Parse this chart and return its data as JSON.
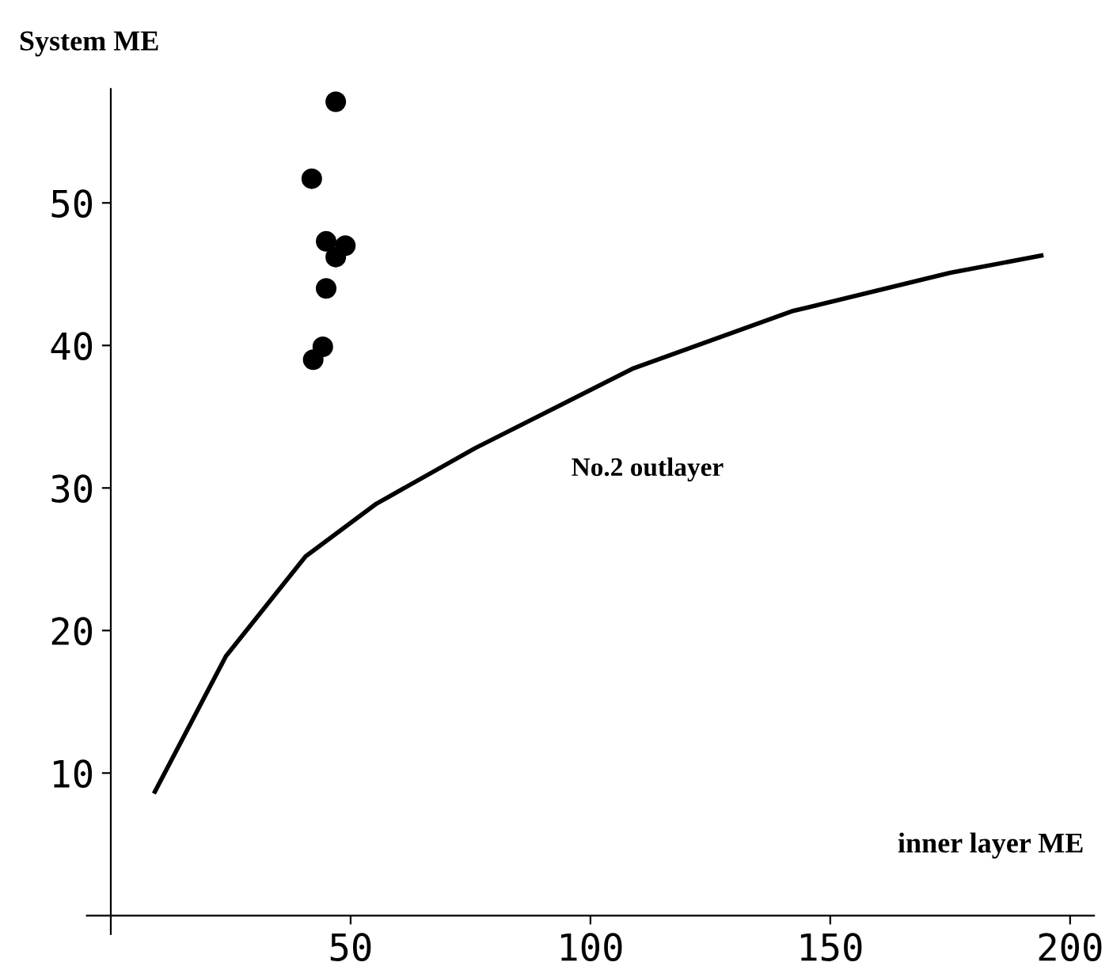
{
  "chart_data": {
    "type": "scatter",
    "xlabel": "inner layer ME",
    "ylabel": "System ME",
    "annotations": [
      "No.2 outlayer"
    ],
    "xlim": [
      -5,
      205
    ],
    "ylim": [
      -1.3,
      58
    ],
    "xticks": [
      50,
      100,
      150,
      200
    ],
    "yticks": [
      10,
      20,
      30,
      40,
      50
    ],
    "grid": false,
    "legend": false,
    "series": [
      {
        "color": "#000000",
        "marker": "circle",
        "x": [
          46.9,
          41.9,
          44.9,
          48.9,
          46.9,
          44.9,
          44.2,
          42.2
        ],
        "values": [
          57.1,
          51.7,
          47.3,
          47.0,
          46.2,
          44.0,
          39.9,
          39.0
        ]
      },
      {
        "type": "line",
        "color": "#000000",
        "marker": "none",
        "line_style": "solid",
        "x": [
          9.2,
          24,
          40.6,
          55.4,
          76,
          109,
          142,
          175,
          194
        ],
        "values": [
          8.7,
          18.2,
          25.2,
          28.9,
          32.8,
          38.4,
          42.4,
          45.1,
          46.3
        ]
      }
    ]
  }
}
